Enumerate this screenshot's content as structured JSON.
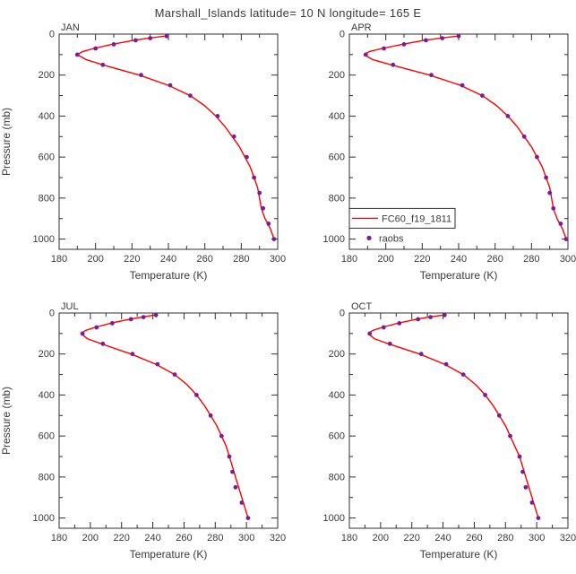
{
  "title": "Marshall_Islands  latitude= 10 N  longitude= 165 E",
  "axes": {
    "xlabel": "Temperature (K)",
    "ylabel": "Pressure (mb)"
  },
  "legend": {
    "line_label": "FC60_f19_1811",
    "dot_label": "raobs"
  },
  "colors": {
    "line": "#fe0000",
    "dots": "#7c1d97",
    "axis": "#2f2f2f",
    "text": "#3a3a3a"
  },
  "chart_data": [
    {
      "type": "line+scatter",
      "panel": "JAN",
      "xlim": [
        180,
        300
      ],
      "ylim": [
        0,
        1050
      ],
      "xticks_major": 20,
      "xticks_minor": 10,
      "yticks_major": 200,
      "yticks_minor": 100,
      "xlabel": "Temperature (K)",
      "ylabel": "Pressure (mb)",
      "show_legend": false,
      "series": [
        {
          "name": "FC60_f19_1811",
          "style": "line",
          "pressure": [
            10,
            20,
            30,
            50,
            70,
            85,
            100,
            125,
            150,
            200,
            250,
            300,
            350,
            400,
            450,
            500,
            550,
            600,
            650,
            700,
            750,
            800,
            850,
            900,
            950,
            1000
          ],
          "temperature": [
            238,
            229,
            221,
            209,
            199,
            193,
            190,
            195,
            204,
            224,
            240,
            252,
            260,
            266,
            271,
            275,
            279,
            282,
            285,
            287,
            289,
            290,
            291,
            293,
            296,
            298
          ]
        },
        {
          "name": "raobs",
          "style": "scatter",
          "pressure": [
            10,
            20,
            30,
            50,
            70,
            100,
            150,
            200,
            250,
            300,
            400,
            500,
            600,
            700,
            775,
            850,
            925,
            1000
          ],
          "temperature": [
            239,
            230,
            222,
            210,
            200,
            190,
            204,
            225,
            241,
            252,
            267,
            276,
            283,
            287,
            290,
            292,
            295,
            298
          ]
        }
      ]
    },
    {
      "type": "line+scatter",
      "panel": "APR",
      "xlim": [
        180,
        300
      ],
      "ylim": [
        0,
        1050
      ],
      "xticks_major": 20,
      "xticks_minor": 10,
      "yticks_major": 200,
      "yticks_minor": 100,
      "xlabel": "Temperature (K)",
      "ylabel": "Pressure (mb)",
      "show_legend": true,
      "series": [
        {
          "name": "FC60_f19_1811",
          "style": "line",
          "pressure": [
            10,
            20,
            30,
            50,
            70,
            85,
            100,
            125,
            150,
            200,
            250,
            300,
            350,
            400,
            450,
            500,
            550,
            600,
            650,
            700,
            750,
            800,
            850,
            900,
            950,
            1000
          ],
          "temperature": [
            239,
            230,
            221,
            209,
            198,
            191,
            188,
            193,
            203,
            224,
            241,
            253,
            261,
            267,
            272,
            276,
            280,
            283,
            286,
            288,
            290,
            291,
            292,
            294,
            297,
            299
          ]
        },
        {
          "name": "raobs",
          "style": "scatter",
          "pressure": [
            10,
            20,
            30,
            50,
            70,
            100,
            150,
            200,
            250,
            300,
            400,
            500,
            600,
            700,
            775,
            850,
            925,
            1000
          ],
          "temperature": [
            240,
            231,
            222,
            210,
            199,
            189,
            204,
            225,
            242,
            253,
            267,
            276,
            283,
            288,
            290,
            292,
            296,
            299
          ]
        }
      ]
    },
    {
      "type": "line+scatter",
      "panel": "JUL",
      "xlim": [
        180,
        320
      ],
      "ylim": [
        0,
        1050
      ],
      "xticks_major": 20,
      "xticks_minor": 10,
      "yticks_major": 200,
      "yticks_minor": 100,
      "xlabel": "Temperature (K)",
      "ylabel": "Pressure (mb)",
      "show_legend": false,
      "series": [
        {
          "name": "FC60_f19_1811",
          "style": "line",
          "pressure": [
            10,
            20,
            30,
            50,
            70,
            85,
            100,
            125,
            150,
            200,
            250,
            300,
            350,
            400,
            450,
            500,
            550,
            600,
            650,
            700,
            750,
            800,
            850,
            900,
            950,
            1000
          ],
          "temperature": [
            241,
            233,
            225,
            213,
            203,
            197,
            194,
            198,
            207,
            226,
            242,
            254,
            262,
            268,
            273,
            277,
            281,
            284,
            287,
            289,
            291,
            293,
            295,
            297,
            299,
            301
          ]
        },
        {
          "name": "raobs",
          "style": "scatter",
          "pressure": [
            10,
            20,
            30,
            50,
            70,
            100,
            150,
            200,
            250,
            300,
            400,
            500,
            600,
            700,
            775,
            850,
            925,
            1000
          ],
          "temperature": [
            242,
            234,
            226,
            214,
            204,
            195,
            208,
            227,
            243,
            254,
            268,
            277,
            284,
            289,
            291,
            293,
            297,
            301
          ]
        }
      ]
    },
    {
      "type": "line+scatter",
      "panel": "OCT",
      "xlim": [
        180,
        320
      ],
      "ylim": [
        0,
        1050
      ],
      "xticks_major": 20,
      "xticks_minor": 10,
      "yticks_major": 200,
      "yticks_minor": 100,
      "xlabel": "Temperature (K)",
      "ylabel": "Pressure (mb)",
      "show_legend": false,
      "series": [
        {
          "name": "FC60_f19_1811",
          "style": "line",
          "pressure": [
            10,
            20,
            30,
            50,
            70,
            85,
            100,
            125,
            150,
            200,
            250,
            300,
            350,
            400,
            450,
            500,
            550,
            600,
            650,
            700,
            750,
            800,
            850,
            900,
            950,
            1000
          ],
          "temperature": [
            240,
            231,
            223,
            211,
            201,
            195,
            192,
            196,
            205,
            225,
            241,
            253,
            261,
            267,
            272,
            276,
            280,
            283,
            286,
            289,
            291,
            293,
            295,
            297,
            299,
            301
          ]
        },
        {
          "name": "raobs",
          "style": "scatter",
          "pressure": [
            10,
            20,
            30,
            50,
            70,
            100,
            150,
            200,
            250,
            300,
            400,
            500,
            600,
            700,
            775,
            850,
            925,
            1000
          ],
          "temperature": [
            241,
            232,
            224,
            212,
            202,
            193,
            206,
            226,
            242,
            253,
            267,
            276,
            283,
            289,
            291,
            293,
            297,
            301
          ]
        }
      ]
    }
  ]
}
